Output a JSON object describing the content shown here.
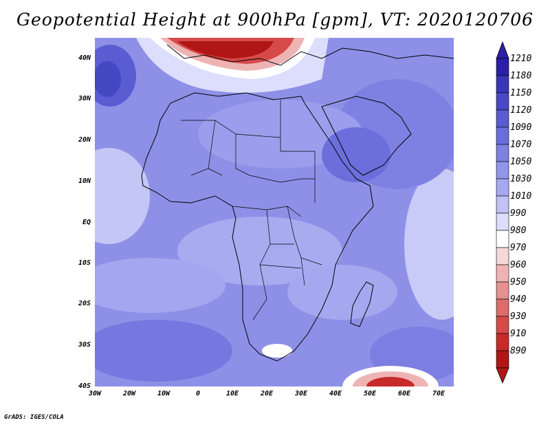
{
  "title": "Geopotential Height at 900hPa [gpm], VT: 2020120706",
  "footer": "GrADS: IGES/COLA",
  "chart_data": {
    "type": "heatmap",
    "title": "Geopotential Height at 900hPa [gpm], VT: 2020120706",
    "x_ticks": [
      "30W",
      "20W",
      "10W",
      "0",
      "10E",
      "20E",
      "30E",
      "40E",
      "50E",
      "60E",
      "70E"
    ],
    "y_ticks": [
      "40N",
      "30N",
      "20N",
      "10N",
      "EQ",
      "10S",
      "20S",
      "30S",
      "40S"
    ],
    "xlim": [
      -30,
      75
    ],
    "ylim": [
      -40,
      45
    ],
    "colorbar_levels": [
      "1210",
      "1180",
      "1150",
      "1120",
      "1090",
      "1070",
      "1050",
      "1030",
      "1010",
      "990",
      "980",
      "970",
      "960",
      "950",
      "940",
      "930",
      "910",
      "890"
    ],
    "colorbar_colors": [
      "#2a1fa6",
      "#3a35b8",
      "#4a48c6",
      "#5a5cd2",
      "#6a6edc",
      "#7e80e3",
      "#9294ea",
      "#a6a8f0",
      "#c0c2f6",
      "#dcdefb",
      "#ffffff",
      "#f6d8d8",
      "#eeb4b4",
      "#e69090",
      "#de6c6c",
      "#d64a4a",
      "#c82a2a",
      "#b01616"
    ]
  }
}
